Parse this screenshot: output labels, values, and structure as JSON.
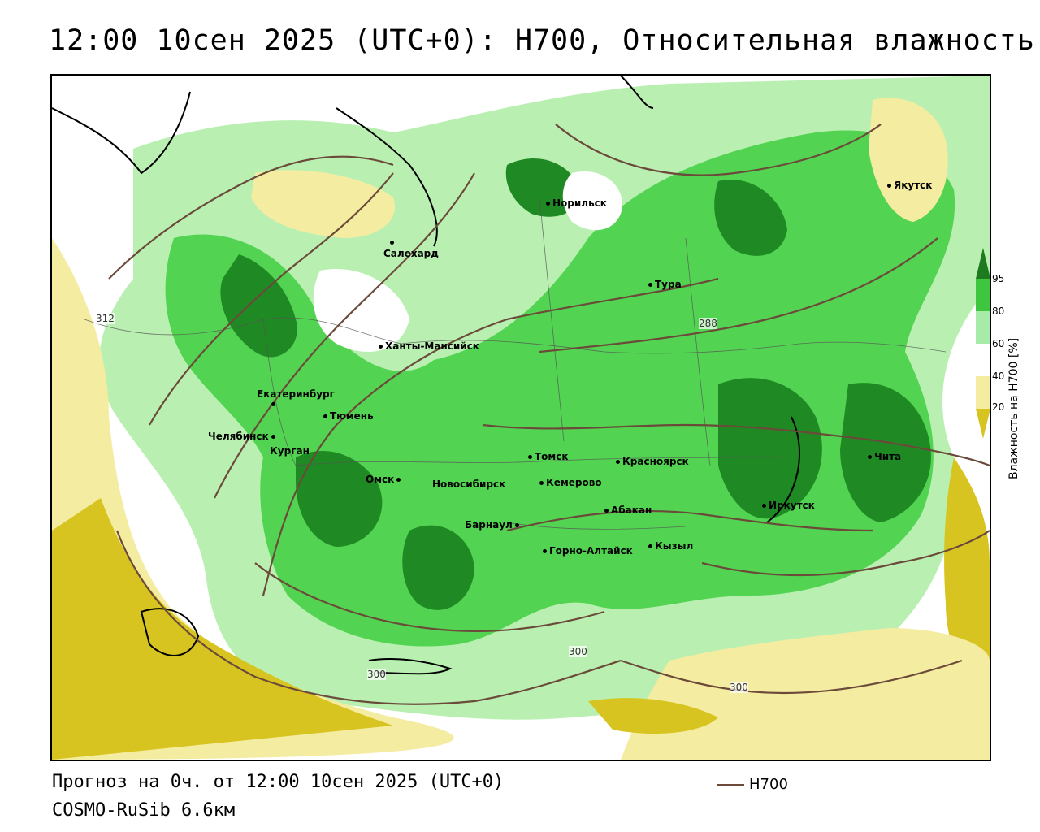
{
  "title": "12:00 10сен 2025 (UTC+0): H700, Относительная влажность",
  "footer": {
    "forecast": "Прогноз на 0ч. от 12:00 10сен 2025 (UTC+0)",
    "model": "COSMO-RuSib 6.6км"
  },
  "legend": {
    "h700_label": "H700",
    "h700_color": "#6b4a3a"
  },
  "colorbar": {
    "title": "Влажность на H700 [%]",
    "ticks": [
      "95",
      "80",
      "60",
      "40",
      "20"
    ],
    "colors": [
      "#1e7a1e",
      "#3fc63f",
      "#a8eba8",
      "#ffffff",
      "#ffffff",
      "#f4eca0",
      "#d8c420"
    ]
  },
  "cities": [
    {
      "name": "Якутск"
    },
    {
      "name": "Норильск"
    },
    {
      "name": "Салехард"
    },
    {
      "name": "Тура"
    },
    {
      "name": "Ханты-Мансийск"
    },
    {
      "name": "Екатеринбург"
    },
    {
      "name": "Тюмень"
    },
    {
      "name": "Челябинск"
    },
    {
      "name": "Курган"
    },
    {
      "name": "Томск"
    },
    {
      "name": "Красноярск"
    },
    {
      "name": "Омск"
    },
    {
      "name": "Новосибирск"
    },
    {
      "name": "Кемерово"
    },
    {
      "name": "Абакан"
    },
    {
      "name": "Иркутск"
    },
    {
      "name": "Чита"
    },
    {
      "name": "Барнаул"
    },
    {
      "name": "Горно-Алтайск"
    },
    {
      "name": "Кызыл"
    }
  ],
  "isolines": [
    "312",
    "288",
    "300",
    "300",
    "300"
  ]
}
